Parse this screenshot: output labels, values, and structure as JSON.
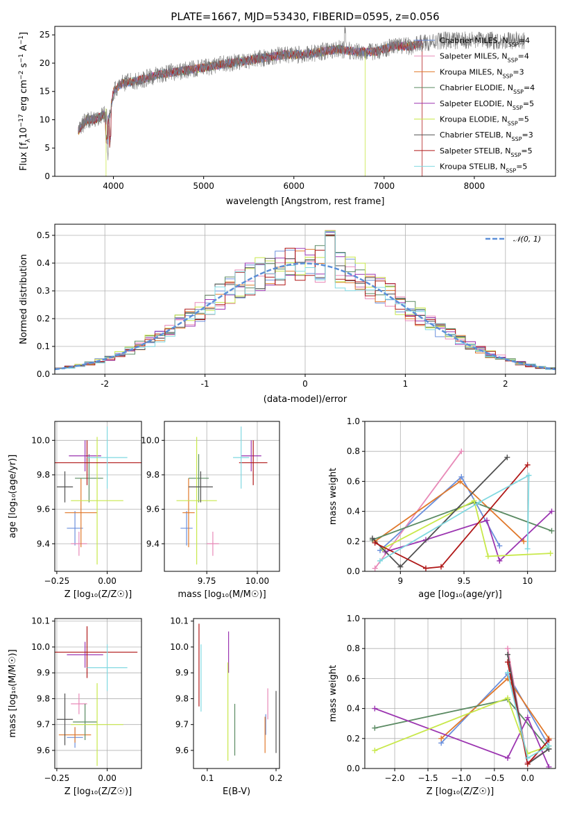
{
  "colors": {
    "Chabrier MILES": "#6a8fdc",
    "Salpeter MILES": "#e88ab8",
    "Kroupa MILES": "#e0782a",
    "Chabrier ELODIE": "#5a8a62",
    "Salpeter ELODIE": "#9b34b0",
    "Kroupa ELODIE": "#c8e84a",
    "Chabrier STELIB": "#505050",
    "Salpeter STELIB": "#b01818",
    "Kroupa STELIB": "#7fd8e0"
  },
  "models": [
    "Chabrier MILES",
    "Salpeter MILES",
    "Kroupa MILES",
    "Chabrier ELODIE",
    "Salpeter ELODIE",
    "Kroupa ELODIE",
    "Chabrier STELIB",
    "Salpeter STELIB",
    "Kroupa STELIB"
  ],
  "nssp": [
    4,
    4,
    3,
    4,
    5,
    5,
    3,
    5,
    5
  ],
  "chart_data": [
    {
      "id": "spectrum",
      "type": "line",
      "title": "PLATE=1667, MJD=53430, FIBERID=0595, z=0.056",
      "xlabel": "wavelength [Angstrom, rest frame]",
      "ylabel": "Flux [fλ10⁻¹⁷ erg cm⁻² s⁻¹ A⁻¹]",
      "xlim": [
        3350,
        8900
      ],
      "ylim": [
        0,
        26.5
      ],
      "xticks": [
        4000,
        5000,
        6000,
        7000,
        8000
      ],
      "yticks": [
        0,
        5,
        10,
        15,
        20,
        25
      ],
      "legend": [
        "Chabrier MILES, N_SSP=4",
        "Salpeter MILES, N_SSP=4",
        "Kroupa MILES, N_SSP=3",
        "Chabrier ELODIE, N_SSP=4",
        "Salpeter ELODIE, N_SSP=5",
        "Kroupa ELODIE, N_SSP=5",
        "Chabrier STELIB, N_SSP=3",
        "Salpeter STELIB, N_SSP=5",
        "Kroupa STELIB, N_SSP=5"
      ],
      "legend_position": "right",
      "continuum": [
        [
          3610,
          8
        ],
        [
          3700,
          10
        ],
        [
          3800,
          10
        ],
        [
          3900,
          11
        ],
        [
          3950,
          10
        ],
        [
          4000,
          15
        ],
        [
          4100,
          16.5
        ],
        [
          4300,
          17
        ],
        [
          4500,
          18
        ],
        [
          4700,
          18.5
        ],
        [
          4900,
          19
        ],
        [
          5100,
          19.5
        ],
        [
          5300,
          20
        ],
        [
          5500,
          20.5
        ],
        [
          5700,
          21
        ],
        [
          5900,
          21.5
        ],
        [
          6100,
          21.5
        ],
        [
          6300,
          22
        ],
        [
          6500,
          22.5
        ],
        [
          6700,
          22
        ],
        [
          6900,
          22
        ],
        [
          7100,
          23
        ],
        [
          7300,
          23
        ],
        [
          7420,
          23.5
        ],
        [
          7600,
          24
        ]
      ],
      "data_range": [
        3610,
        8560
      ],
      "model_range": [
        3610,
        7420
      ]
    },
    {
      "id": "residuals",
      "type": "histogram",
      "xlabel": "(data-model)/error",
      "ylabel": "Normed distribution",
      "xlim": [
        -2.5,
        2.5
      ],
      "ylim": [
        0,
        0.54
      ],
      "xticks": [
        -2,
        -1,
        0,
        1,
        2
      ],
      "yticks": [
        0.0,
        0.1,
        0.2,
        0.3,
        0.4,
        0.5
      ],
      "legend": [
        "𝒩(0, 1)"
      ],
      "legend_position": "top-right",
      "bin_width": 0.1,
      "grid": true
    },
    {
      "id": "age_vs_Z",
      "type": "errorbar",
      "xlabel": "Z [log₁₀(Z/Z☉)]",
      "ylabel": "age  [log₁₀(age/yr)]",
      "xlim": [
        -0.26,
        0.17
      ],
      "ylim": [
        9.24,
        10.11
      ],
      "xticks": [
        -0.25,
        0.0
      ],
      "xticklabels": [
        "−0.25",
        "0.00"
      ],
      "yticks": [
        9.4,
        9.6,
        9.8,
        10.0
      ],
      "grid": true,
      "points": [
        {
          "x": -0.16,
          "xerr": 0.04,
          "y": 9.49,
          "yerr": 0.1
        },
        {
          "x": -0.14,
          "xerr": 0.04,
          "y": 9.4,
          "yerr": 0.07
        },
        {
          "x": -0.13,
          "xerr": 0.08,
          "y": 9.58,
          "yerr": 0.2
        },
        {
          "x": -0.09,
          "xerr": 0.07,
          "y": 9.78,
          "yerr": 0.14
        },
        {
          "x": -0.11,
          "xerr": 0.08,
          "y": 9.91,
          "yerr": 0.09
        },
        {
          "x": -0.05,
          "xerr": 0.13,
          "y": 9.65,
          "yerr": 0.37
        },
        {
          "x": -0.21,
          "xerr": 0.04,
          "y": 9.73,
          "yerr": 0.09
        },
        {
          "x": -0.1,
          "xerr": 0.27,
          "y": 9.87,
          "yerr": 0.13
        },
        {
          "x": 0.0,
          "xerr": 0.1,
          "y": 9.9,
          "yerr": 0.18
        }
      ]
    },
    {
      "id": "age_vs_mass",
      "type": "errorbar",
      "xlabel": "mass [log₁₀(M/M☉)]",
      "xlim": [
        9.54,
        10.11
      ],
      "ylim": [
        9.24,
        10.11
      ],
      "xticks": [
        9.75,
        10.0
      ],
      "xticklabels": [
        "9.75",
        "10.00"
      ],
      "yticks": [
        9.4,
        9.6,
        9.8,
        10.0
      ],
      "grid": true,
      "points": [
        {
          "x": 9.65,
          "xerr": 0.03,
          "y": 9.49,
          "yerr": 0.1
        },
        {
          "x": 9.78,
          "xerr": 0.03,
          "y": 9.4,
          "yerr": 0.07
        },
        {
          "x": 9.66,
          "xerr": 0.03,
          "y": 9.58,
          "yerr": 0.2
        },
        {
          "x": 9.71,
          "xerr": 0.05,
          "y": 9.78,
          "yerr": 0.14
        },
        {
          "x": 9.97,
          "xerr": 0.05,
          "y": 9.91,
          "yerr": 0.09
        },
        {
          "x": 9.7,
          "xerr": 0.1,
          "y": 9.65,
          "yerr": 0.37
        },
        {
          "x": 9.72,
          "xerr": 0.06,
          "y": 9.73,
          "yerr": 0.09
        },
        {
          "x": 9.98,
          "xerr": 0.07,
          "y": 9.87,
          "yerr": 0.13
        },
        {
          "x": 9.92,
          "xerr": 0.04,
          "y": 9.9,
          "yerr": 0.18
        }
      ]
    },
    {
      "id": "weight_vs_age",
      "type": "line",
      "xlabel": "age  [log₁₀(age/yr)]",
      "ylabel": "mass weight",
      "xlim": [
        8.72,
        10.22
      ],
      "ylim": [
        0,
        1.0
      ],
      "xticks": [
        9.0,
        9.5,
        10.0
      ],
      "yticks": [
        0.0,
        0.2,
        0.4,
        0.6,
        0.8,
        1.0
      ],
      "grid": true,
      "series": [
        {
          "x": [
            8.84,
            9.48,
            9.78
          ],
          "y": [
            0.14,
            0.63,
            0.17
          ]
        },
        {
          "x": [
            8.8,
            9.48
          ],
          "y": [
            0.02,
            0.8
          ]
        },
        {
          "x": [
            8.8,
            9.47,
            9.97
          ],
          "y": [
            0.2,
            0.6,
            0.2
          ]
        },
        {
          "x": [
            8.78,
            9.58,
            10.19
          ],
          "y": [
            0.21,
            0.46,
            0.27
          ]
        },
        {
          "x": [
            8.88,
            9.2,
            9.68,
            9.78,
            10.19
          ],
          "y": [
            0.13,
            0.21,
            0.34,
            0.07,
            0.4
          ]
        },
        {
          "x": [
            8.86,
            9.58,
            9.69,
            10.18
          ],
          "y": [
            0.15,
            0.47,
            0.1,
            0.12
          ]
        },
        {
          "x": [
            8.78,
            9.0,
            9.84
          ],
          "y": [
            0.22,
            0.03,
            0.76
          ]
        },
        {
          "x": [
            8.8,
            9.2,
            9.32,
            10.0
          ],
          "y": [
            0.19,
            0.02,
            0.03,
            0.71
          ]
        },
        {
          "x": [
            8.84,
            9.62,
            10.01,
            10.0
          ],
          "y": [
            0.07,
            0.46,
            0.64,
            0.15
          ]
        }
      ]
    },
    {
      "id": "mass_vs_Z",
      "type": "errorbar",
      "xlabel": "Z [log₁₀(Z/Z☉)]",
      "ylabel": "mass [log₁₀(M/M☉)]",
      "xlim": [
        -0.26,
        0.17
      ],
      "ylim": [
        9.53,
        10.11
      ],
      "xticks": [
        -0.25,
        0.0
      ],
      "xticklabels": [
        "−0.25",
        "0.00"
      ],
      "yticks": [
        9.6,
        9.7,
        9.8,
        9.9,
        10.0,
        10.1
      ],
      "grid": true,
      "points": [
        {
          "x": -0.16,
          "xerr": 0.04,
          "y": 9.65,
          "yerr": 0.04
        },
        {
          "x": -0.14,
          "xerr": 0.04,
          "y": 9.78,
          "yerr": 0.04
        },
        {
          "x": -0.16,
          "xerr": 0.08,
          "y": 9.66,
          "yerr": 0.03
        },
        {
          "x": -0.11,
          "xerr": 0.06,
          "y": 9.71,
          "yerr": 0.07
        },
        {
          "x": -0.11,
          "xerr": 0.09,
          "y": 9.97,
          "yerr": 0.05
        },
        {
          "x": -0.05,
          "xerr": 0.13,
          "y": 9.7,
          "yerr": 0.16
        },
        {
          "x": -0.21,
          "xerr": 0.04,
          "y": 9.72,
          "yerr": 0.1
        },
        {
          "x": -0.1,
          "xerr": 0.25,
          "y": 9.98,
          "yerr": 0.1
        },
        {
          "x": 0.0,
          "xerr": 0.1,
          "y": 9.92,
          "yerr": 0.09
        }
      ]
    },
    {
      "id": "mass_vs_ebv",
      "type": "errorbar",
      "xlabel": "E(B-V)",
      "xlim": [
        0.08,
        0.205
      ],
      "ylim": [
        9.53,
        10.11
      ],
      "xticks": [
        0.1,
        0.2
      ],
      "xticklabels": [
        "0.1",
        "0.2"
      ],
      "yticks": [
        9.6,
        9.7,
        9.8,
        9.9,
        10.0,
        10.1
      ],
      "grid": false,
      "points": [
        {
          "x": 0.185,
          "xerr": 0,
          "y": 9.7,
          "yerr": 0.04
        },
        {
          "x": 0.188,
          "xerr": 0,
          "y": 9.78,
          "yerr": 0.06
        },
        {
          "x": 0.184,
          "xerr": 0,
          "y": 9.66,
          "yerr": 0.07
        },
        {
          "x": 0.14,
          "xerr": 0,
          "y": 9.68,
          "yerr": 0.1
        },
        {
          "x": 0.131,
          "xerr": 0,
          "y": 9.98,
          "yerr": 0.08
        },
        {
          "x": 0.13,
          "xerr": 0,
          "y": 9.75,
          "yerr": 0.19
        },
        {
          "x": 0.2,
          "xerr": 0,
          "y": 9.71,
          "yerr": 0.12
        },
        {
          "x": 0.088,
          "xerr": 0,
          "y": 9.93,
          "yerr": 0.16
        },
        {
          "x": 0.091,
          "xerr": 0,
          "y": 9.88,
          "yerr": 0.13
        }
      ]
    },
    {
      "id": "weight_vs_Z",
      "type": "line",
      "xlabel": "Z [log₁₀(Z/Z☉)]",
      "ylabel": "mass weight",
      "xlim": [
        -2.45,
        0.42
      ],
      "ylim": [
        0,
        1.0
      ],
      "xticks": [
        -2.0,
        -1.5,
        -1.0,
        -0.5,
        0.0
      ],
      "xticklabels": [
        "−2.0",
        "−1.5",
        "−1.0",
        "−0.5",
        "0.0"
      ],
      "yticks": [
        0.0,
        0.2,
        0.4,
        0.6,
        0.8,
        1.0
      ],
      "grid": true,
      "series": [
        {
          "x": [
            -1.3,
            -0.3,
            0.32
          ],
          "y": [
            0.17,
            0.63,
            0.15
          ]
        },
        {
          "x": [
            -0.3,
            0.0,
            0.32
          ],
          "y": [
            0.8,
            0.04,
            0.13
          ]
        },
        {
          "x": [
            -1.3,
            -0.3,
            0.32
          ],
          "y": [
            0.2,
            0.6,
            0.2
          ]
        },
        {
          "x": [
            -2.3,
            -0.3,
            0.32
          ],
          "y": [
            0.27,
            0.46,
            0.13
          ]
        },
        {
          "x": [
            -2.3,
            -0.3,
            0.0,
            0.32
          ],
          "y": [
            0.4,
            0.07,
            0.34,
            0.01
          ]
        },
        {
          "x": [
            -2.3,
            -0.3,
            0.0,
            0.32
          ],
          "y": [
            0.12,
            0.47,
            0.1,
            0.15
          ]
        },
        {
          "x": [
            -0.3,
            0.0,
            0.32
          ],
          "y": [
            0.76,
            0.03,
            0.13
          ]
        },
        {
          "x": [
            -0.3,
            0.0,
            0.32
          ],
          "y": [
            0.71,
            0.03,
            0.19
          ]
        },
        {
          "x": [
            -0.3,
            0.0,
            0.32
          ],
          "y": [
            0.64,
            0.07,
            0.15
          ]
        }
      ]
    }
  ]
}
